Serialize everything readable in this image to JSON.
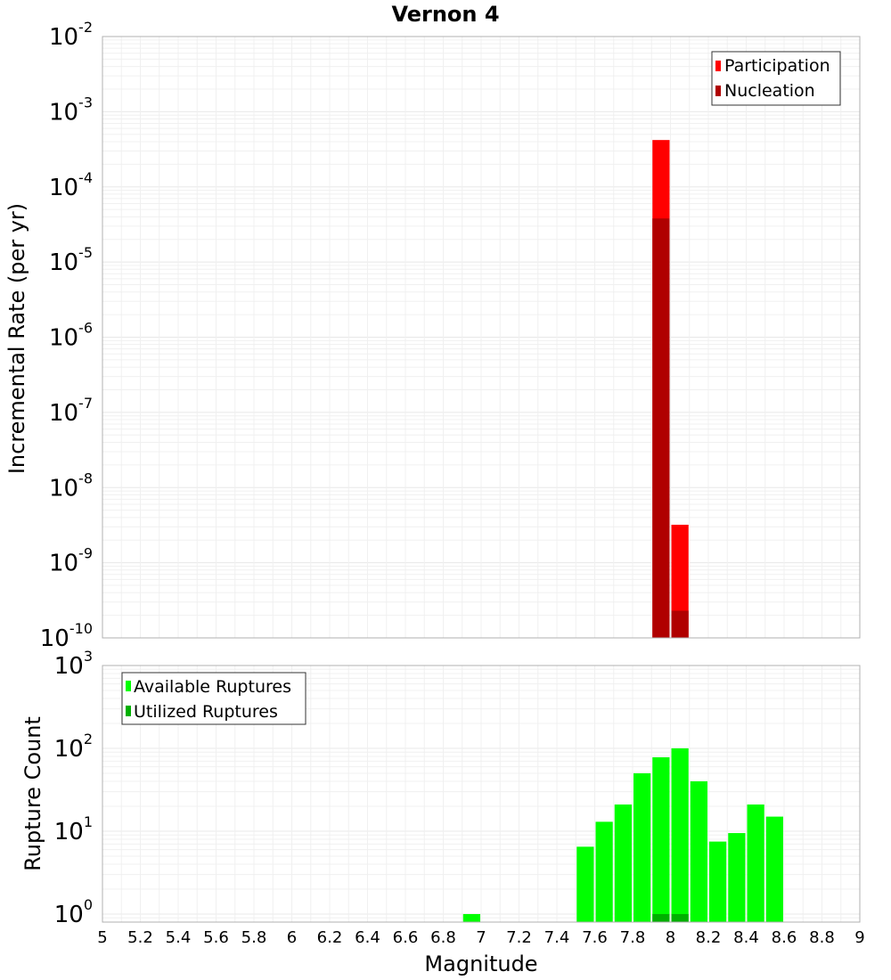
{
  "chart_data": [
    {
      "type": "bar",
      "panel": "top",
      "title": "Vernon 4",
      "xlabel": "",
      "ylabel": "Incremental Rate (per yr)",
      "yscale": "log",
      "ylim": [
        1e-10,
        0.01
      ],
      "xlim": [
        5,
        9
      ],
      "grid": true,
      "legend_position": "top-right",
      "series": [
        {
          "name": "Participation",
          "color": "#ff0000",
          "points": [
            {
              "x": 7.95,
              "y": 0.00042
            },
            {
              "x": 8.05,
              "y": 3.2e-09
            }
          ]
        },
        {
          "name": "Nucleation",
          "color": "#b00000",
          "points": [
            {
              "x": 7.95,
              "y": 3.8e-05
            },
            {
              "x": 8.05,
              "y": 2.3e-10
            }
          ]
        }
      ]
    },
    {
      "type": "bar",
      "panel": "bottom",
      "title": "",
      "xlabel": "Magnitude",
      "ylabel": "Rupture Count",
      "yscale": "log",
      "ylim": [
        0.8,
        1000
      ],
      "xlim": [
        5,
        9
      ],
      "xticks": [
        "5",
        "5.2",
        "5.4",
        "5.6",
        "5.8",
        "6",
        "6.2",
        "6.4",
        "6.6",
        "6.8",
        "7",
        "7.2",
        "7.4",
        "7.6",
        "7.8",
        "8",
        "8.2",
        "8.4",
        "8.6",
        "8.8",
        "9"
      ],
      "grid": true,
      "legend_position": "top-left",
      "series": [
        {
          "name": "Available Ruptures",
          "color": "#00ff00",
          "points": [
            {
              "x": 6.95,
              "y": 1
            },
            {
              "x": 7.55,
              "y": 6.5
            },
            {
              "x": 7.65,
              "y": 13
            },
            {
              "x": 7.75,
              "y": 21
            },
            {
              "x": 7.85,
              "y": 50
            },
            {
              "x": 7.95,
              "y": 78
            },
            {
              "x": 8.05,
              "y": 100
            },
            {
              "x": 8.15,
              "y": 40
            },
            {
              "x": 8.25,
              "y": 7.5
            },
            {
              "x": 8.35,
              "y": 9.5
            },
            {
              "x": 8.45,
              "y": 21
            },
            {
              "x": 8.55,
              "y": 15
            }
          ]
        },
        {
          "name": "Utilized Ruptures",
          "color": "#00b000",
          "points": [
            {
              "x": 7.95,
              "y": 1
            },
            {
              "x": 8.05,
              "y": 1
            }
          ]
        }
      ]
    }
  ]
}
